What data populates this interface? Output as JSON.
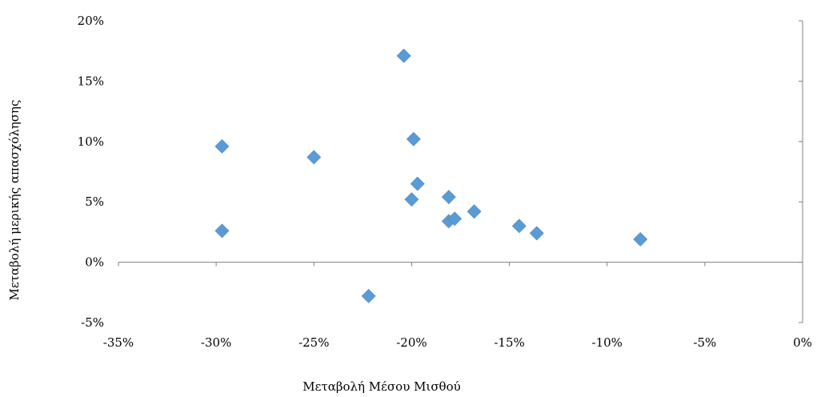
{
  "chart_data": {
    "type": "scatter",
    "xlabel": "Μεταβολή Μέσου Μισθού",
    "ylabel": "Μεταβολή μερικής απασχόλησης",
    "xlim": [
      -35,
      0
    ],
    "ylim": [
      -5,
      20
    ],
    "x_ticks": [
      -35,
      -30,
      -25,
      -20,
      -15,
      -10,
      -5,
      0
    ],
    "y_ticks": [
      -5,
      0,
      5,
      10,
      15,
      20
    ],
    "x_tick_labels": [
      "-35%",
      "-30%",
      "-25%",
      "-20%",
      "-15%",
      "-10%",
      "-5%",
      "0%"
    ],
    "y_tick_labels": [
      "-5%",
      "0%",
      "5%",
      "10%",
      "15%",
      "20%"
    ],
    "grid": false,
    "marker": "diamond",
    "marker_color": "#5b9bd5",
    "points": [
      {
        "x": -29.7,
        "y": 9.6
      },
      {
        "x": -29.7,
        "y": 2.6
      },
      {
        "x": -25.0,
        "y": 8.7
      },
      {
        "x": -22.2,
        "y": -2.8
      },
      {
        "x": -20.4,
        "y": 17.1
      },
      {
        "x": -19.9,
        "y": 10.2
      },
      {
        "x": -19.7,
        "y": 6.5
      },
      {
        "x": -20.0,
        "y": 5.2
      },
      {
        "x": -18.1,
        "y": 5.4
      },
      {
        "x": -18.1,
        "y": 3.4
      },
      {
        "x": -17.8,
        "y": 3.6
      },
      {
        "x": -16.8,
        "y": 4.2
      },
      {
        "x": -14.5,
        "y": 3.0
      },
      {
        "x": -13.6,
        "y": 2.4
      },
      {
        "x": -8.3,
        "y": 1.9
      }
    ]
  }
}
